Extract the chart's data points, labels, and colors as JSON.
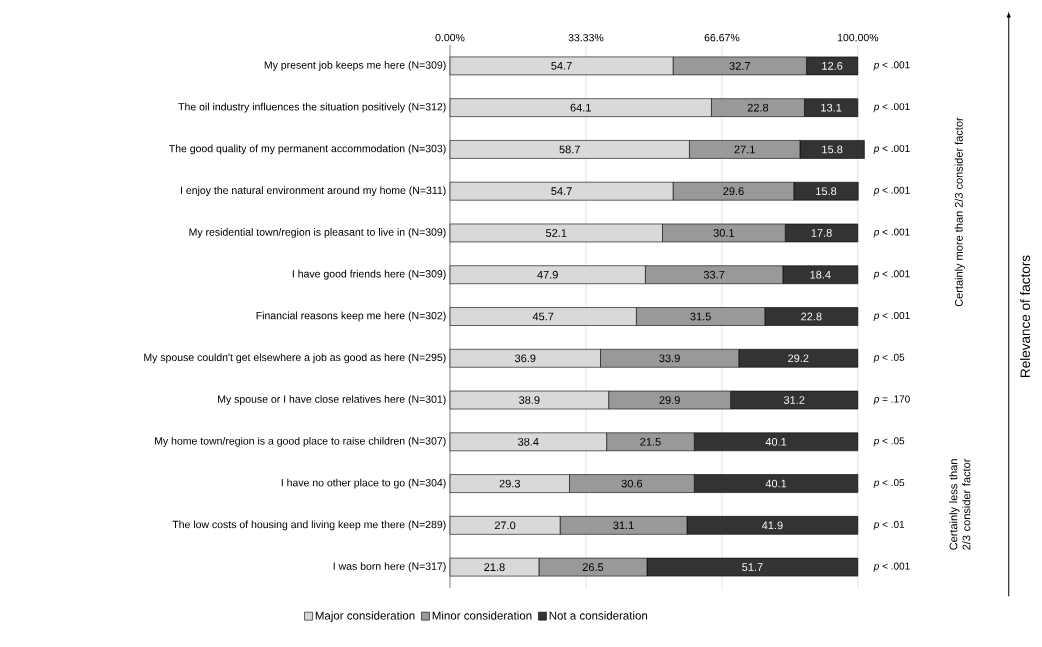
{
  "chart_data": {
    "type": "bar",
    "orientation": "horizontal",
    "stacked": true,
    "categories": [
      "My present job keeps me here (N=309)",
      "The oil industry influences the situation positively (N=312)",
      "The good quality of my permanent accommodation (N=303)",
      "I enjoy the natural environment around my home (N=311)",
      "My residential town/region is pleasant to live in (N=309)",
      "I have good friends here (N=309)",
      "Financial reasons keep me here (N=302)",
      "My spouse couldn't get elsewhere a job as good as here (N=295)",
      "My spouse or I have close relatives here (N=301)",
      "My home town/region is a good place to raise children (N=307)",
      "I have no other place to go (N=304)",
      "The low costs of housing and living keep me there (N=289)",
      "I was born here (N=317)"
    ],
    "series": [
      {
        "name": "Major consideration",
        "color": "#d9d9d9",
        "values": [
          54.7,
          64.1,
          58.7,
          54.7,
          52.1,
          47.9,
          45.7,
          36.9,
          38.9,
          38.4,
          29.3,
          27.0,
          21.8
        ],
        "value_labels": [
          "54.7",
          "64.1",
          "58.7",
          "54.7",
          "52.1",
          "47.9",
          "45.7",
          "36.9",
          "38.9",
          "38.4",
          "29.3",
          "27.0",
          "21.8"
        ]
      },
      {
        "name": "Minor consideration",
        "color": "#999999",
        "values": [
          32.7,
          22.8,
          27.1,
          29.6,
          30.1,
          33.7,
          31.5,
          33.9,
          29.9,
          21.5,
          30.6,
          31.1,
          26.5
        ],
        "value_labels": [
          "32.7",
          "22.8",
          "27.1",
          "29.6",
          "30.1",
          "33.7",
          "31.5",
          "33.9",
          "29.9",
          "21.5",
          "30.6",
          "31.1",
          "26.5"
        ]
      },
      {
        "name": "Not a consideration",
        "color": "#333333",
        "values": [
          12.6,
          13.1,
          15.8,
          15.8,
          17.8,
          18.4,
          22.8,
          29.2,
          31.2,
          40.1,
          40.1,
          41.9,
          51.7
        ],
        "value_labels": [
          "12.6",
          "13.1",
          "15.8",
          "15.8",
          "17.8",
          "18.4",
          "22.8",
          "29.2",
          "31.2",
          "40.1",
          "40.1",
          "41.9",
          "51.7"
        ]
      }
    ],
    "xlim": [
      0,
      102
    ],
    "xticks": [
      {
        "value": 0,
        "label": "0.00%"
      },
      {
        "value": 33.33,
        "label": "33.33%"
      },
      {
        "value": 66.67,
        "label": "66.67%"
      },
      {
        "value": 100,
        "label": "100.00%"
      }
    ],
    "grid": "x",
    "legend": "bottom",
    "annotations": [
      "*p* < .001",
      "*p* < .001",
      "*p* < .001",
      "*p* < .001",
      "*p* < .001",
      "*p* < .001",
      "*p* < .001",
      "*p* < .05",
      "*p* = .170",
      "*p* < .05",
      "*p* < .05",
      "*p* < .01",
      "*p* < .001",
      "Certainly more than 2/3 consider factor",
      "Certainly less than 2/3 consider factor",
      "Relevance of factors"
    ]
  }
}
